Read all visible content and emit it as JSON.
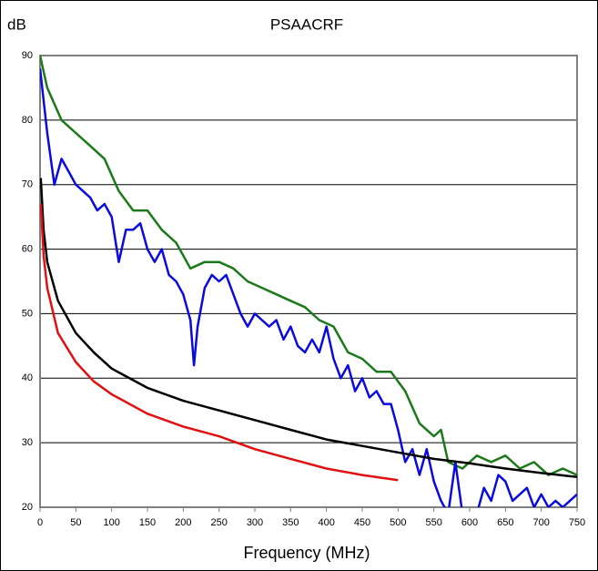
{
  "chart_data": {
    "type": "line",
    "title": "PSAACRF",
    "y_label": "dB",
    "x_label": "Frequency (MHz)",
    "xlim": [
      0,
      750
    ],
    "xticks": [
      0,
      50,
      100,
      150,
      200,
      250,
      300,
      350,
      400,
      450,
      500,
      550,
      600,
      650,
      700,
      750
    ],
    "ylim": [
      20,
      90
    ],
    "yticks": [
      20,
      30,
      40,
      50,
      60,
      70,
      80,
      90
    ],
    "grid": true,
    "series": [
      {
        "color": "#1a7a1a",
        "x": [
          0,
          10,
          30,
          50,
          70,
          90,
          110,
          130,
          150,
          170,
          190,
          210,
          230,
          250,
          270,
          290,
          310,
          330,
          350,
          370,
          390,
          410,
          430,
          450,
          470,
          490,
          510,
          530,
          550,
          560,
          570,
          590,
          610,
          630,
          650,
          670,
          690,
          710,
          730,
          750
        ],
        "values": [
          90,
          85,
          80,
          78,
          76,
          74,
          69,
          66,
          66,
          63,
          61,
          57,
          58,
          58,
          57,
          55,
          54,
          53,
          52,
          51,
          49,
          48,
          44,
          43,
          41,
          41,
          38,
          33,
          31,
          32,
          27,
          26,
          28,
          27,
          28,
          26,
          27,
          25,
          26,
          25
        ]
      },
      {
        "color": "#0a0ae0",
        "x": [
          0,
          10,
          20,
          30,
          40,
          50,
          60,
          70,
          80,
          90,
          100,
          110,
          120,
          130,
          140,
          150,
          160,
          170,
          180,
          190,
          200,
          210,
          215,
          220,
          230,
          240,
          250,
          260,
          270,
          280,
          290,
          300,
          310,
          320,
          330,
          340,
          350,
          360,
          370,
          380,
          390,
          400,
          410,
          420,
          430,
          440,
          450,
          460,
          470,
          480,
          490,
          500,
          510,
          520,
          530,
          540,
          550,
          560,
          570,
          580,
          590,
          600,
          610,
          620,
          630,
          640,
          650,
          660,
          670,
          680,
          690,
          700,
          710,
          720,
          730,
          740,
          750
        ],
        "values": [
          88,
          78,
          70,
          74,
          72,
          70,
          69,
          68,
          66,
          67,
          65,
          58,
          63,
          63,
          64,
          60,
          58,
          60,
          56,
          55,
          53,
          49,
          42,
          48,
          54,
          56,
          55,
          56,
          53,
          50,
          48,
          50,
          49,
          48,
          49,
          46,
          48,
          45,
          44,
          46,
          44,
          48,
          43,
          40,
          42,
          38,
          40,
          37,
          38,
          36,
          36,
          32,
          27,
          29,
          25,
          29,
          24,
          21,
          19,
          27,
          19,
          18,
          19,
          23,
          21,
          25,
          24,
          21,
          22,
          23,
          20,
          22,
          20,
          21,
          20,
          21,
          22
        ]
      },
      {
        "color": "#000000",
        "x": [
          1,
          5,
          10,
          25,
          50,
          75,
          100,
          150,
          200,
          250,
          300,
          350,
          400,
          450,
          500,
          550,
          600,
          650,
          700,
          750
        ],
        "values": [
          71,
          63,
          58,
          52,
          47,
          44,
          41.5,
          38.5,
          36.5,
          35,
          33.5,
          32,
          30.5,
          29.5,
          28.5,
          27.5,
          26.8,
          26,
          25.3,
          24.7
        ]
      },
      {
        "color": "#e01010",
        "x": [
          1,
          5,
          10,
          25,
          50,
          75,
          100,
          150,
          200,
          250,
          300,
          350,
          400,
          450,
          500
        ],
        "values": [
          67,
          59,
          54,
          47,
          42.5,
          39.5,
          37.5,
          34.5,
          32.5,
          31,
          29,
          27.5,
          26,
          25,
          24.2
        ]
      }
    ]
  }
}
